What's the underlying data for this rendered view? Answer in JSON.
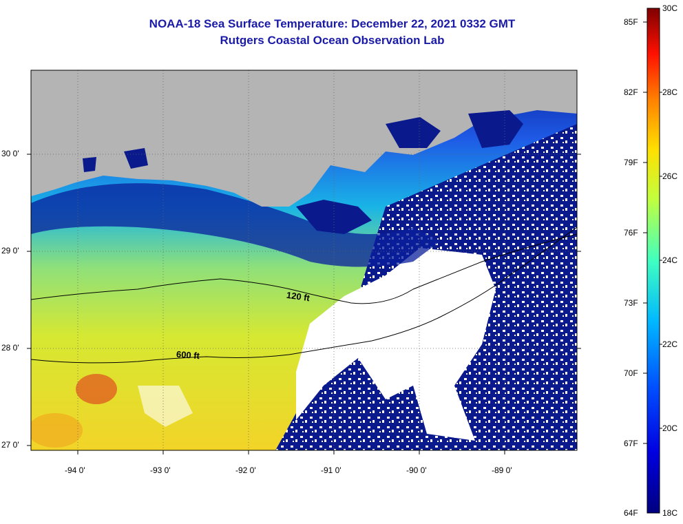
{
  "title": {
    "line1": "NOAA-18 Sea Surface Temperature:  December 22, 2021 0332 GMT",
    "line2": "Rutgers Coastal Ocean Observation Lab"
  },
  "map": {
    "lat_labels": [
      "30 0'",
      "29 0'",
      "28 0'",
      "27 0'"
    ],
    "lon_labels": [
      "-94 0'",
      "-93 0'",
      "-92 0'",
      "-91 0'",
      "-90 0'",
      "-89 0'"
    ],
    "contour_labels": [
      "120 ft",
      "600 ft"
    ],
    "colors": {
      "land": "#b4b4b4",
      "cloud": "#ffffff",
      "cold_water": "#0a1a8c"
    }
  },
  "colorbar": {
    "celsius_labels": [
      "30C",
      "28C",
      "26C",
      "24C",
      "22C",
      "20C",
      "18C"
    ],
    "fahrenheit_labels": [
      "85F",
      "82F",
      "79F",
      "76F",
      "73F",
      "70F",
      "67F",
      "64F"
    ],
    "min_c": 18,
    "max_c": 30
  }
}
